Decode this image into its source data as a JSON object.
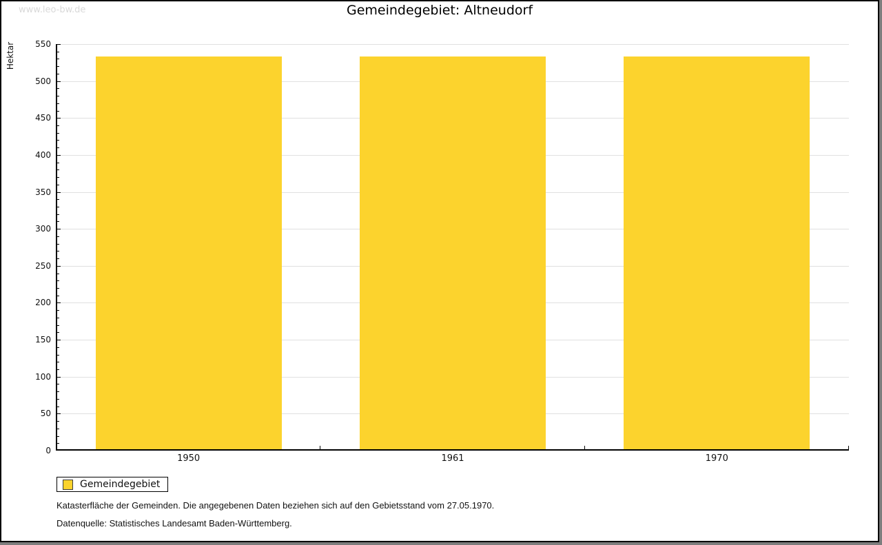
{
  "watermark": "www.leo-bw.de",
  "title": "Gemeindegebiet: Altneudorf",
  "chart_data": {
    "type": "bar",
    "title": "Gemeindegebiet: Altneudorf",
    "categories": [
      "1950",
      "1961",
      "1970"
    ],
    "series": [
      {
        "name": "Gemeindegebiet",
        "values": [
          533,
          533,
          533
        ]
      }
    ],
    "xlabel": "",
    "ylabel": "Hektar",
    "ylim": [
      0,
      550
    ],
    "yticks": [
      0,
      50,
      100,
      150,
      200,
      250,
      300,
      350,
      400,
      450,
      500,
      550
    ],
    "minor_tick_step": 10,
    "grid": true,
    "legend_position": "bottom-left",
    "bar_color": "#fcd32d",
    "gridline_color": "#e0e0e0"
  },
  "legend": {
    "items": [
      {
        "label": "Gemeindegebiet",
        "color": "#fcd32d"
      }
    ]
  },
  "footer": {
    "line1": "Katasterfläche der Gemeinden. Die angegebenen Daten beziehen sich auf den Gebietsstand vom 27.05.1970.",
    "line2": "Datenquelle: Statistisches Landesamt Baden-Württemberg."
  }
}
